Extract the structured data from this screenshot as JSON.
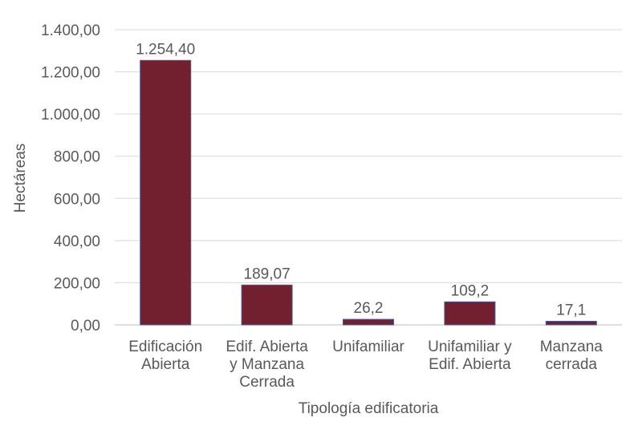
{
  "chart_data": {
    "type": "bar",
    "title": "",
    "xlabel": "Tipología edificatoria",
    "ylabel": "Hectáreas",
    "categories": [
      [
        "Edificación",
        "Abierta"
      ],
      [
        "Edif. Abierta",
        "y Manzana",
        "Cerrada"
      ],
      [
        "Unifamiliar"
      ],
      [
        "Unifamiliar y",
        "Edif. Abierta"
      ],
      [
        "Manzana",
        "cerrada"
      ]
    ],
    "values": [
      1254.4,
      189.07,
      26.2,
      109.2,
      17.1
    ],
    "data_labels": [
      "1.254,40",
      "189,07",
      "26,2",
      "109,2",
      "17,1"
    ],
    "ylim": [
      0,
      1400
    ],
    "yticks": [
      0,
      200,
      400,
      600,
      800,
      1000,
      1200,
      1400
    ],
    "ytick_labels": [
      "0,00",
      "200,00",
      "400,00",
      "600,00",
      "800,00",
      "1.000,00",
      "1.200,00",
      "1.400,00"
    ],
    "grid": true,
    "legend": "none",
    "bar_color": "#722030",
    "bar_edge_color": "#4a5a9a",
    "grid_color": "#d9d9d9",
    "text_color": "#595959"
  }
}
